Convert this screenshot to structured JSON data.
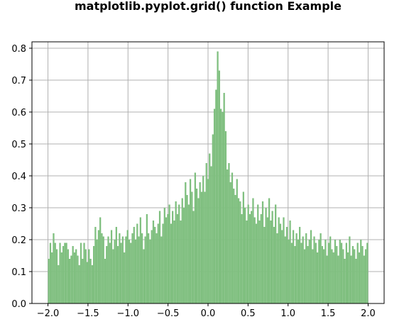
{
  "chart_data": {
    "type": "bar",
    "title": "matplotlib.pyplot.grid() function Example",
    "xlabel": "",
    "ylabel": "",
    "xlim": [
      -2.2,
      2.2
    ],
    "ylim": [
      0,
      0.82
    ],
    "grid": true,
    "bar_color": "#7fbf7f",
    "bin_range": [
      -2.0,
      2.0
    ],
    "x_ticks": [
      {
        "value": -2.0,
        "label": "−2.0"
      },
      {
        "value": -1.5,
        "label": "−1.5"
      },
      {
        "value": -1.0,
        "label": "−1.0"
      },
      {
        "value": -0.5,
        "label": "−0.5"
      },
      {
        "value": 0.0,
        "label": "0.0"
      },
      {
        "value": 0.5,
        "label": "0.5"
      },
      {
        "value": 1.0,
        "label": "1.0"
      },
      {
        "value": 1.5,
        "label": "1.5"
      },
      {
        "value": 2.0,
        "label": "2.0"
      }
    ],
    "y_ticks": [
      {
        "value": 0.0,
        "label": "0.0"
      },
      {
        "value": 0.1,
        "label": "0.1"
      },
      {
        "value": 0.2,
        "label": "0.2"
      },
      {
        "value": 0.3,
        "label": "0.3"
      },
      {
        "value": 0.4,
        "label": "0.4"
      },
      {
        "value": 0.5,
        "label": "0.5"
      },
      {
        "value": 0.6,
        "label": "0.6"
      },
      {
        "value": 0.7,
        "label": "0.7"
      },
      {
        "value": 0.8,
        "label": "0.8"
      }
    ],
    "values": [
      0.14,
      0.19,
      0.16,
      0.22,
      0.19,
      0.17,
      0.12,
      0.19,
      0.16,
      0.18,
      0.19,
      0.19,
      0.17,
      0.14,
      0.15,
      0.18,
      0.16,
      0.17,
      0.15,
      0.12,
      0.19,
      0.14,
      0.19,
      0.17,
      0.13,
      0.17,
      0.14,
      0.12,
      0.18,
      0.24,
      0.2,
      0.23,
      0.27,
      0.22,
      0.21,
      0.14,
      0.18,
      0.21,
      0.19,
      0.23,
      0.17,
      0.2,
      0.24,
      0.18,
      0.22,
      0.19,
      0.21,
      0.16,
      0.21,
      0.23,
      0.2,
      0.19,
      0.22,
      0.24,
      0.2,
      0.25,
      0.21,
      0.27,
      0.22,
      0.17,
      0.21,
      0.28,
      0.22,
      0.2,
      0.23,
      0.26,
      0.24,
      0.22,
      0.25,
      0.29,
      0.21,
      0.25,
      0.3,
      0.27,
      0.28,
      0.31,
      0.25,
      0.29,
      0.26,
      0.32,
      0.28,
      0.31,
      0.26,
      0.33,
      0.3,
      0.38,
      0.34,
      0.31,
      0.39,
      0.35,
      0.29,
      0.41,
      0.36,
      0.33,
      0.38,
      0.35,
      0.4,
      0.35,
      0.44,
      0.39,
      0.47,
      0.43,
      0.53,
      0.61,
      0.67,
      0.79,
      0.73,
      0.61,
      0.6,
      0.66,
      0.54,
      0.42,
      0.44,
      0.38,
      0.41,
      0.36,
      0.34,
      0.39,
      0.33,
      0.32,
      0.28,
      0.35,
      0.3,
      0.26,
      0.31,
      0.28,
      0.29,
      0.33,
      0.27,
      0.25,
      0.31,
      0.26,
      0.28,
      0.32,
      0.24,
      0.3,
      0.27,
      0.33,
      0.26,
      0.29,
      0.24,
      0.31,
      0.22,
      0.27,
      0.25,
      0.23,
      0.27,
      0.21,
      0.24,
      0.2,
      0.26,
      0.19,
      0.23,
      0.18,
      0.22,
      0.2,
      0.24,
      0.19,
      0.21,
      0.17,
      0.22,
      0.18,
      0.2,
      0.23,
      0.17,
      0.21,
      0.19,
      0.16,
      0.2,
      0.22,
      0.18,
      0.17,
      0.2,
      0.15,
      0.19,
      0.21,
      0.17,
      0.16,
      0.2,
      0.18,
      0.15,
      0.2,
      0.19,
      0.17,
      0.14,
      0.19,
      0.16,
      0.21,
      0.15,
      0.18,
      0.17,
      0.14,
      0.19,
      0.16,
      0.2,
      0.18,
      0.15,
      0.17,
      0.19
    ]
  }
}
